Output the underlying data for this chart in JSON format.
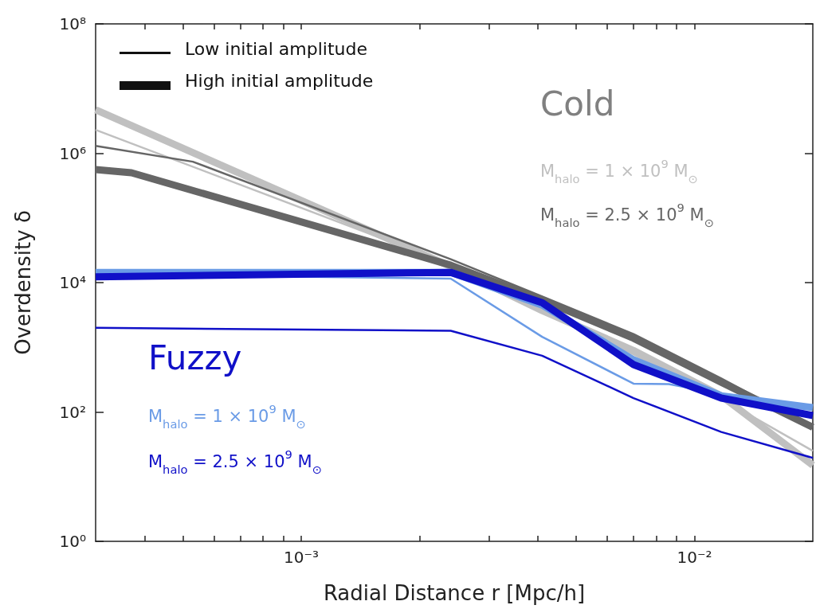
{
  "chart_data": {
    "type": "line",
    "xlabel": "Radial Distance r [Mpc/h]",
    "ylabel": "Overdensity δ",
    "log": "xy",
    "xlim": [
      0.0003,
      0.02
    ],
    "ylim": [
      1,
      100000000
    ],
    "xticks": [
      {
        "value": 0.0004,
        "label": null
      },
      {
        "value": 0.0005,
        "label": null
      },
      {
        "value": 0.0006,
        "label": null
      },
      {
        "value": 0.0007,
        "label": null
      },
      {
        "value": 0.0008,
        "label": null
      },
      {
        "value": 0.0009,
        "label": null
      },
      {
        "value": 0.001,
        "label": "10⁻³"
      },
      {
        "value": 0.002,
        "label": null
      },
      {
        "value": 0.003,
        "label": null
      },
      {
        "value": 0.004,
        "label": null
      },
      {
        "value": 0.005,
        "label": null
      },
      {
        "value": 0.006,
        "label": null
      },
      {
        "value": 0.007,
        "label": null
      },
      {
        "value": 0.008,
        "label": null
      },
      {
        "value": 0.009,
        "label": null
      },
      {
        "value": 0.01,
        "label": "10⁻²"
      }
    ],
    "yticks": [
      {
        "value": 1,
        "label": "10⁰"
      },
      {
        "value": 100,
        "label": "10²"
      },
      {
        "value": 10000,
        "label": "10⁴"
      },
      {
        "value": 1000000,
        "label": "10⁶"
      },
      {
        "value": 100000000,
        "label": "10⁸"
      }
    ],
    "grid": false,
    "marker": "none",
    "line_style": "solid",
    "series": [
      {
        "color": "#c0c0c0",
        "x": [
          0.0003,
          0.0024,
          0.0041,
          0.007,
          0.0117,
          0.02
        ],
        "values": [
          2300000,
          19000,
          4000,
          780,
          160,
          25
        ]
      },
      {
        "color": "#c0c0c0",
        "x": [
          0.0003,
          0.0024,
          0.0041,
          0.007,
          0.0117,
          0.02
        ],
        "values": [
          4700000,
          17800,
          3700,
          890,
          178,
          15
        ]
      },
      {
        "color": "#666666",
        "x": [
          0.0003,
          0.00053,
          0.0024,
          0.0041,
          0.007,
          0.0117,
          0.02
        ],
        "values": [
          1300000,
          740000,
          23000,
          6100,
          1600,
          330,
          58
        ]
      },
      {
        "color": "#666666",
        "x": [
          0.0003,
          0.00037,
          0.0024,
          0.0041,
          0.007,
          0.0117,
          0.02
        ],
        "values": [
          560000,
          500000,
          18600,
          5400,
          1380,
          288,
          58
        ]
      },
      {
        "color": "#6a9be6",
        "x": [
          0.0003,
          0.0024,
          0.0041,
          0.007,
          0.0086,
          0.0117,
          0.02
        ],
        "values": [
          13600,
          11500,
          1450,
          274,
          270,
          190,
          124
        ]
      },
      {
        "color": "#6a9be6",
        "x": [
          0.0003,
          0.0024,
          0.0041,
          0.007,
          0.0117,
          0.02
        ],
        "values": [
          14400,
          14400,
          4500,
          640,
          178,
          117
        ]
      },
      {
        "color": "#1010c8",
        "x": [
          0.0003,
          0.0024,
          0.0041,
          0.007,
          0.0117,
          0.02
        ],
        "values": [
          2000,
          1800,
          740,
          164,
          49,
          19.5
        ]
      },
      {
        "color": "#1010c8",
        "x": [
          0.0003,
          0.0024,
          0.0041,
          0.007,
          0.0117,
          0.02
        ],
        "values": [
          12300,
          14400,
          4900,
          540,
          164,
          88
        ]
      }
    ],
    "annotations": [
      "Low initial amplitude",
      "High initial amplitude",
      "Cold",
      "M$_{halo}$ = 1 × 10$^{9}$ M$_{⊙}$",
      "M$_{halo}$ = 2.5 × 10$^{9}$ M$_{⊙}$",
      "Fuzzy",
      "M$_{halo}$ = 1 × 10$^{9}$ M$_{⊙}$",
      "M$_{halo}$ = 2.5 × 10$^{9}$ M$_{⊙}$"
    ]
  }
}
